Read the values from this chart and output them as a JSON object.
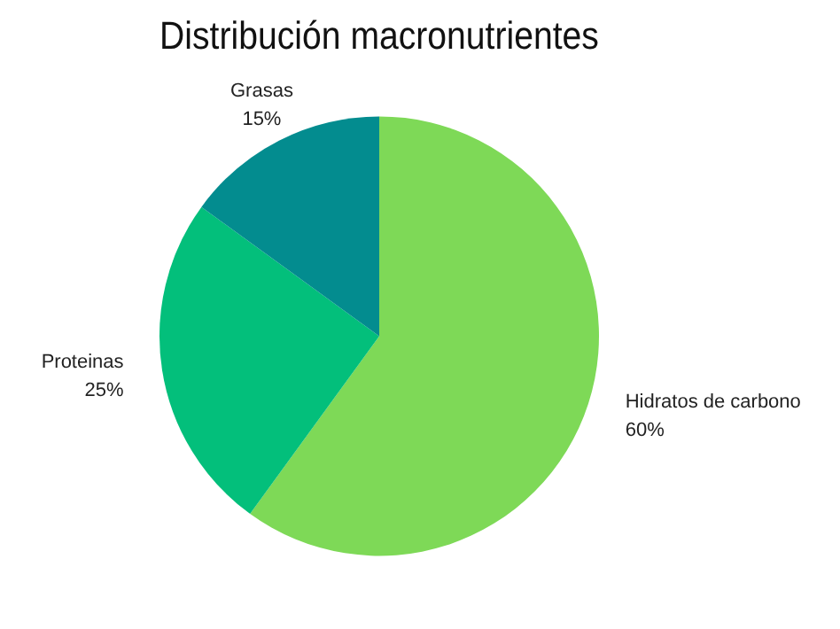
{
  "chart_data": {
    "type": "pie",
    "title": "Distribución macronutrientes",
    "categories": [
      "Hidratos de carbono",
      "Proteinas",
      "Grasas"
    ],
    "values": [
      60,
      25,
      15
    ],
    "value_labels": [
      "60%",
      "25%",
      "15%"
    ],
    "colors": [
      "#7ed957",
      "#03bf7b",
      "#038c8f"
    ],
    "legend": false
  }
}
